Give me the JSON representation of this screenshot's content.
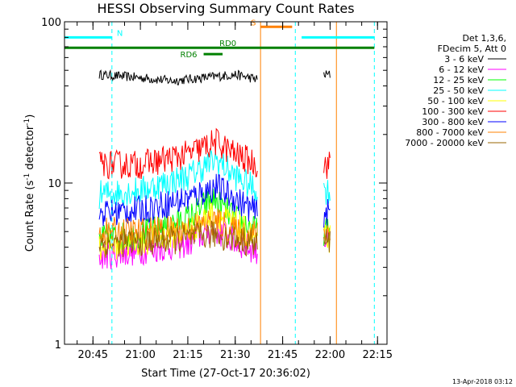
{
  "chart_data": {
    "type": "line",
    "title": "HESSI Observing Summary Count Rates",
    "xlabel": "Start Time (27-Oct-17 20:36:02)",
    "ylabel_main": "Count Rate (s",
    "ylabel_sup": "-1",
    "ylabel_mid": " detector",
    "ylabel_sup2": "-1",
    "ylabel_end": ")",
    "yscale": "log",
    "ylim": [
      1,
      100
    ],
    "xlim": [
      "20:36",
      "22:18"
    ],
    "x_ticks": [
      "20:45",
      "21:00",
      "21:15",
      "21:30",
      "21:45",
      "22:00",
      "22:15"
    ],
    "y_ticks": [
      "1",
      "10",
      "100"
    ],
    "legend_header": [
      "Det 1,3,6,",
      "FDecim 5, Att 0"
    ],
    "data_gaps": [
      [
        "21:38",
        "21:58"
      ]
    ],
    "series": [
      {
        "name": "3 - 6 keV",
        "color": "#000000",
        "segments": [
          {
            "x": [
              "20:47",
              "21:00",
              "21:10",
              "21:20",
              "21:30",
              "21:37"
            ],
            "y": [
              47,
              45,
              43,
              45,
              47,
              44
            ]
          },
          {
            "x": [
              "21:58",
              "22:00"
            ],
            "y": [
              47,
              47
            ]
          }
        ]
      },
      {
        "name": "6 - 12 keV",
        "color": "#ff00ff",
        "segments": [
          {
            "x": [
              "20:47",
              "21:00",
              "21:15",
              "21:23",
              "21:30",
              "21:37"
            ],
            "y": [
              3.5,
              3.8,
              4.2,
              5.2,
              4.3,
              3.8
            ]
          },
          {
            "x": [
              "21:58",
              "22:00"
            ],
            "y": [
              4.5,
              4.5
            ]
          }
        ]
      },
      {
        "name": "12 - 25 keV",
        "color": "#00ff00",
        "segments": [
          {
            "x": [
              "20:47",
              "21:00",
              "21:15",
              "21:23",
              "21:30",
              "21:37"
            ],
            "y": [
              4.5,
              4.8,
              6,
              8,
              6,
              5
            ]
          },
          {
            "x": [
              "21:58",
              "22:00"
            ],
            "y": [
              5,
              5
            ]
          }
        ]
      },
      {
        "name": "25 - 50 keV",
        "color": "#00ffff",
        "segments": [
          {
            "x": [
              "20:47",
              "21:00",
              "21:15",
              "21:24",
              "21:30",
              "21:37"
            ],
            "y": [
              8.5,
              9,
              11,
              14,
              11,
              9
            ]
          },
          {
            "x": [
              "21:58",
              "22:00"
            ],
            "y": [
              9,
              9
            ]
          }
        ]
      },
      {
        "name": "50 - 100 keV",
        "color": "#ffff00",
        "segments": [
          {
            "x": [
              "20:47",
              "21:00",
              "21:15",
              "21:23",
              "21:30",
              "21:37"
            ],
            "y": [
              4,
              4.3,
              5,
              6.5,
              5.5,
              4.5
            ]
          },
          {
            "x": [
              "21:58",
              "22:00"
            ],
            "y": [
              4.5,
              4.5
            ]
          }
        ]
      },
      {
        "name": "100 - 300 keV",
        "color": "#ff0000",
        "segments": [
          {
            "x": [
              "20:47",
              "21:00",
              "21:15",
              "21:24",
              "21:30",
              "21:37"
            ],
            "y": [
              13,
              13,
              15,
              18,
              15,
              13
            ]
          },
          {
            "x": [
              "21:58",
              "22:00"
            ],
            "y": [
              13,
              13
            ]
          }
        ]
      },
      {
        "name": "300 - 800 keV",
        "color": "#0000ff",
        "segments": [
          {
            "x": [
              "20:47",
              "21:00",
              "21:15",
              "21:24",
              "21:30",
              "21:37"
            ],
            "y": [
              6.5,
              6.8,
              8,
              9.5,
              8,
              6.5
            ]
          },
          {
            "x": [
              "21:58",
              "22:00"
            ],
            "y": [
              6.5,
              6.5
            ]
          }
        ]
      },
      {
        "name": "800 - 7000 keV",
        "color": "#ff8000",
        "segments": [
          {
            "x": [
              "20:47",
              "21:00",
              "21:15",
              "21:24",
              "21:30",
              "21:37"
            ],
            "y": [
              5,
              5,
              5.2,
              5.8,
              5,
              4.8
            ]
          },
          {
            "x": [
              "21:58",
              "22:00"
            ],
            "y": [
              5,
              5
            ]
          }
        ]
      },
      {
        "name": "7000 - 20000 keV",
        "color": "#996600",
        "segments": [
          {
            "x": [
              "20:47",
              "21:00",
              "21:15",
              "21:23",
              "21:30",
              "21:37"
            ],
            "y": [
              4.2,
              4.3,
              4.5,
              4.8,
              4.5,
              4.2
            ]
          },
          {
            "x": [
              "21:58",
              "22:00"
            ],
            "y": [
              4.3,
              4.3
            ]
          }
        ]
      }
    ],
    "annotations": [
      {
        "label": "N",
        "color": "#00ffff",
        "x_start": "20:36",
        "x_end": "20:51",
        "y": 80,
        "line_x": [
          "20:36",
          "20:51"
        ]
      },
      {
        "label": "S",
        "color": "#ff8000",
        "x_start": "21:38",
        "x_end": "21:48",
        "y": 93,
        "line_x": [
          "21:38",
          "22:02"
        ]
      },
      {
        "label": "",
        "color": "#00ffff",
        "x_start": "21:51",
        "x_end": "22:14",
        "y": 80,
        "line_x": [
          "21:49",
          "22:14"
        ]
      },
      {
        "label": "RD0",
        "color": "#008000",
        "x_start": "20:36",
        "x_end": "22:14",
        "y": 69,
        "line_x": []
      },
      {
        "label": "RD6",
        "color": "#008000",
        "x_start": "21:20",
        "x_end": "21:26",
        "y": 63,
        "line_x": []
      }
    ]
  },
  "footer_date": "13-Apr-2018 03:12"
}
